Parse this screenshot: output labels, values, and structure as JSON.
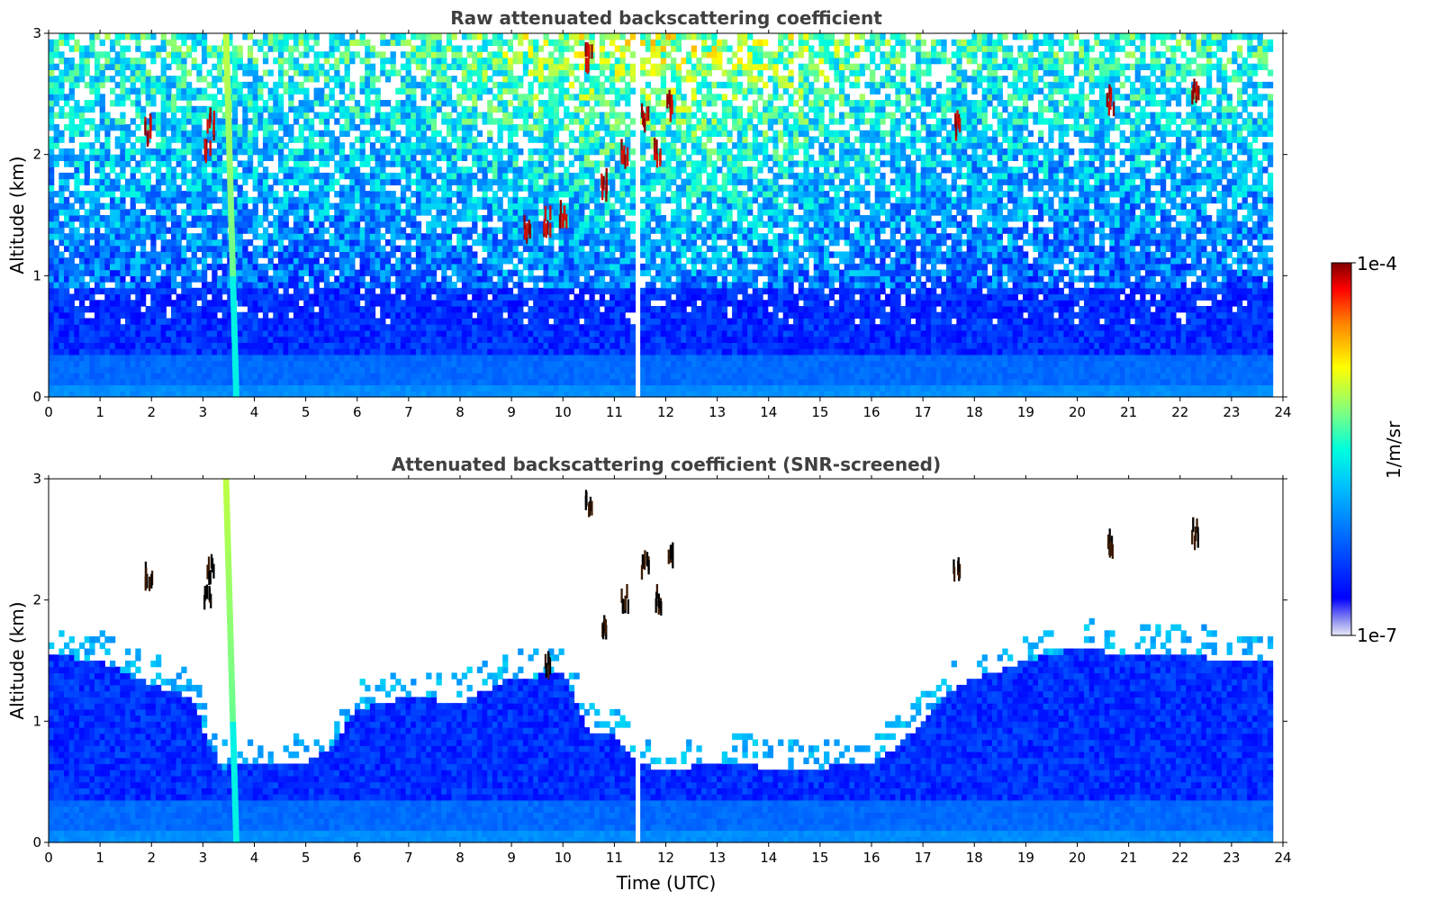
{
  "chart_data": [
    {
      "type": "heatmap",
      "title": "Raw attenuated backscattering coefficient",
      "xlabel": "",
      "ylabel": "Altitude (km)",
      "xlim": [
        0,
        24
      ],
      "ylim": [
        0,
        3
      ],
      "xticks": [
        "0",
        "1",
        "2",
        "3",
        "4",
        "5",
        "6",
        "7",
        "8",
        "9",
        "10",
        "11",
        "12",
        "13",
        "14",
        "15",
        "16",
        "17",
        "18",
        "19",
        "20",
        "21",
        "22",
        "23",
        "24"
      ],
      "yticks": [
        "0",
        "1",
        "2",
        "3"
      ],
      "data_end_time": 23.8,
      "gaps": [
        [
          11.28,
          11.33
        ],
        [
          11.42,
          11.47
        ]
      ],
      "aerosol_plume": {
        "x_top": 3.45,
        "x_bottom": 3.65
      },
      "cloud_patches": [
        {
          "t": 1.95,
          "alt": 2.2
        },
        {
          "t": 3.1,
          "alt": 2.0
        },
        {
          "t": 3.15,
          "alt": 2.25
        },
        {
          "t": 9.3,
          "alt": 1.4
        },
        {
          "t": 9.7,
          "alt": 1.45
        },
        {
          "t": 10.0,
          "alt": 1.5
        },
        {
          "t": 10.5,
          "alt": 2.8
        },
        {
          "t": 10.8,
          "alt": 1.75
        },
        {
          "t": 11.2,
          "alt": 2.0
        },
        {
          "t": 11.6,
          "alt": 2.3
        },
        {
          "t": 11.85,
          "alt": 2.0
        },
        {
          "t": 12.1,
          "alt": 2.4
        },
        {
          "t": 17.65,
          "alt": 2.25
        },
        {
          "t": 20.65,
          "alt": 2.45
        },
        {
          "t": 22.3,
          "alt": 2.55
        }
      ]
    },
    {
      "type": "heatmap",
      "title": "Attenuated backscattering coefficient (SNR-screened)",
      "xlabel": "Time (UTC)",
      "ylabel": "Altitude (km)",
      "xlim": [
        0,
        24
      ],
      "ylim": [
        0,
        3
      ],
      "xticks": [
        "0",
        "1",
        "2",
        "3",
        "4",
        "5",
        "6",
        "7",
        "8",
        "9",
        "10",
        "11",
        "12",
        "13",
        "14",
        "15",
        "16",
        "17",
        "18",
        "19",
        "20",
        "21",
        "22",
        "23",
        "24"
      ],
      "yticks": [
        "0",
        "1",
        "2",
        "3"
      ],
      "data_end_time": 23.8,
      "gaps": [
        [
          11.28,
          11.33
        ],
        [
          11.42,
          11.47
        ]
      ],
      "aerosol_plume": {
        "x_top": 3.45,
        "x_bottom": 3.65
      },
      "screen_boundary": [
        [
          0,
          1.55
        ],
        [
          1,
          1.5
        ],
        [
          2,
          1.3
        ],
        [
          2.8,
          1.2
        ],
        [
          3.1,
          0.8
        ],
        [
          3.4,
          0.62
        ],
        [
          4,
          0.65
        ],
        [
          5,
          0.65
        ],
        [
          5.5,
          0.8
        ],
        [
          6,
          1.1
        ],
        [
          7,
          1.2
        ],
        [
          8,
          1.15
        ],
        [
          9,
          1.35
        ],
        [
          10,
          1.4
        ],
        [
          10.5,
          0.9
        ],
        [
          11,
          0.9
        ],
        [
          11.5,
          0.65
        ],
        [
          12,
          0.6
        ],
        [
          13,
          0.65
        ],
        [
          14,
          0.62
        ],
        [
          15,
          0.62
        ],
        [
          16,
          0.65
        ],
        [
          16.5,
          0.8
        ],
        [
          17,
          1.0
        ],
        [
          17.5,
          1.25
        ],
        [
          18,
          1.35
        ],
        [
          19,
          1.5
        ],
        [
          20,
          1.6
        ],
        [
          21,
          1.55
        ],
        [
          22,
          1.55
        ],
        [
          23,
          1.5
        ],
        [
          23.8,
          1.5
        ]
      ],
      "cloud_patches": [
        {
          "t": 1.95,
          "alt": 2.2
        },
        {
          "t": 3.1,
          "alt": 2.0
        },
        {
          "t": 3.15,
          "alt": 2.25
        },
        {
          "t": 9.7,
          "alt": 1.45
        },
        {
          "t": 10.5,
          "alt": 2.8
        },
        {
          "t": 10.8,
          "alt": 1.75
        },
        {
          "t": 11.2,
          "alt": 2.0
        },
        {
          "t": 11.6,
          "alt": 2.3
        },
        {
          "t": 11.85,
          "alt": 2.0
        },
        {
          "t": 12.1,
          "alt": 2.4
        },
        {
          "t": 17.65,
          "alt": 2.25
        },
        {
          "t": 20.65,
          "alt": 2.45
        },
        {
          "t": 22.3,
          "alt": 2.55
        }
      ]
    }
  ],
  "colorbar": {
    "max_label": "1e-4",
    "min_label": "1e-7",
    "label": "1/m/sr",
    "colormap": "jet",
    "colors": [
      "#e8e8f8",
      "#0000ff",
      "#00a0ff",
      "#00ffff",
      "#80ff80",
      "#ffff00",
      "#ff8000",
      "#ff0000",
      "#800000"
    ]
  }
}
